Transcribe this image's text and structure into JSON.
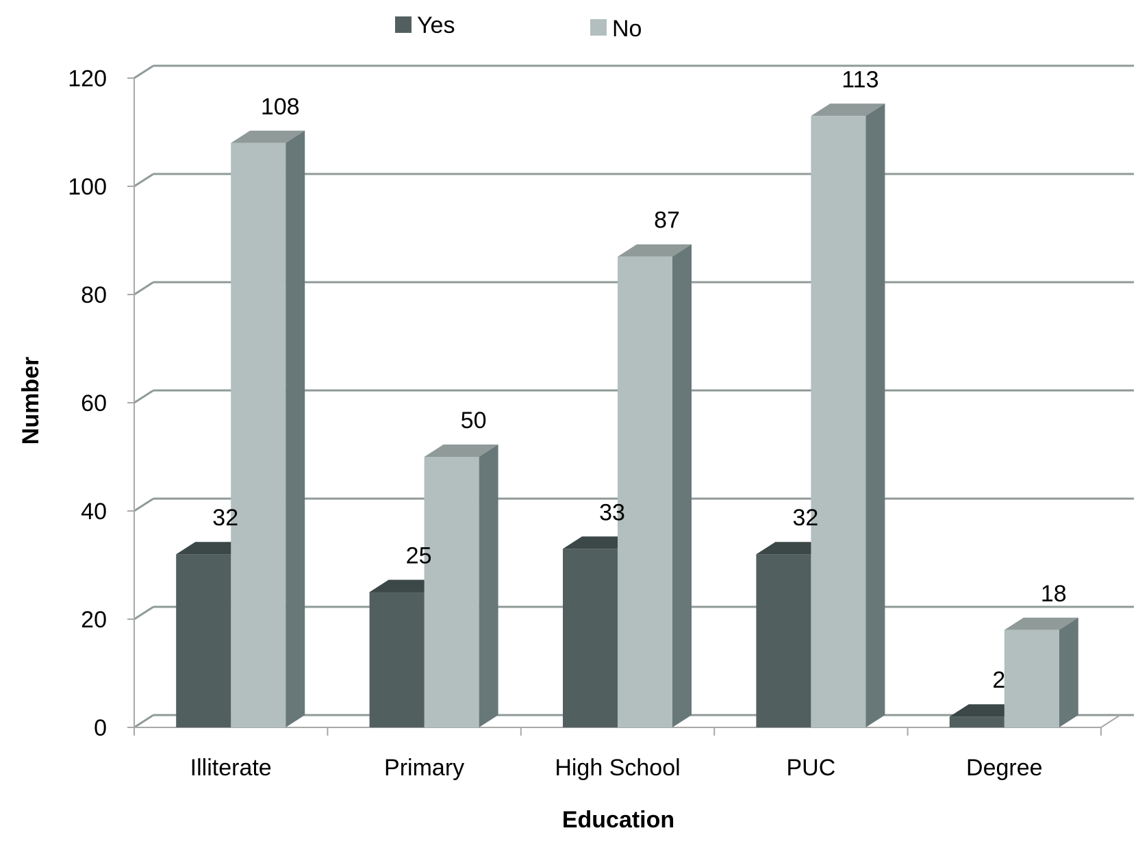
{
  "chart_data": {
    "type": "bar",
    "title": "",
    "xlabel": "Education",
    "ylabel": "Number",
    "categories": [
      "Illiterate",
      "Primary",
      "High School",
      "PUC",
      "Degree"
    ],
    "series": [
      {
        "name": "Yes",
        "values": [
          32,
          25,
          33,
          32,
          2
        ]
      },
      {
        "name": "No",
        "values": [
          108,
          50,
          87,
          113,
          18
        ]
      }
    ],
    "ylim": [
      0,
      120
    ],
    "yticks": [
      0,
      20,
      40,
      60,
      80,
      100,
      120
    ],
    "grid": true,
    "legend_position": "top",
    "style": "3d-clustered-column",
    "colors": {
      "Yes": {
        "front": "#525f5f",
        "top": "#3c4747",
        "side": "#3c4747"
      },
      "No": {
        "front": "#b2bfbe",
        "top": "#8f9a99",
        "side": "#687878"
      },
      "grid": "#8f9a99",
      "axis": "#a8a8a8"
    }
  }
}
